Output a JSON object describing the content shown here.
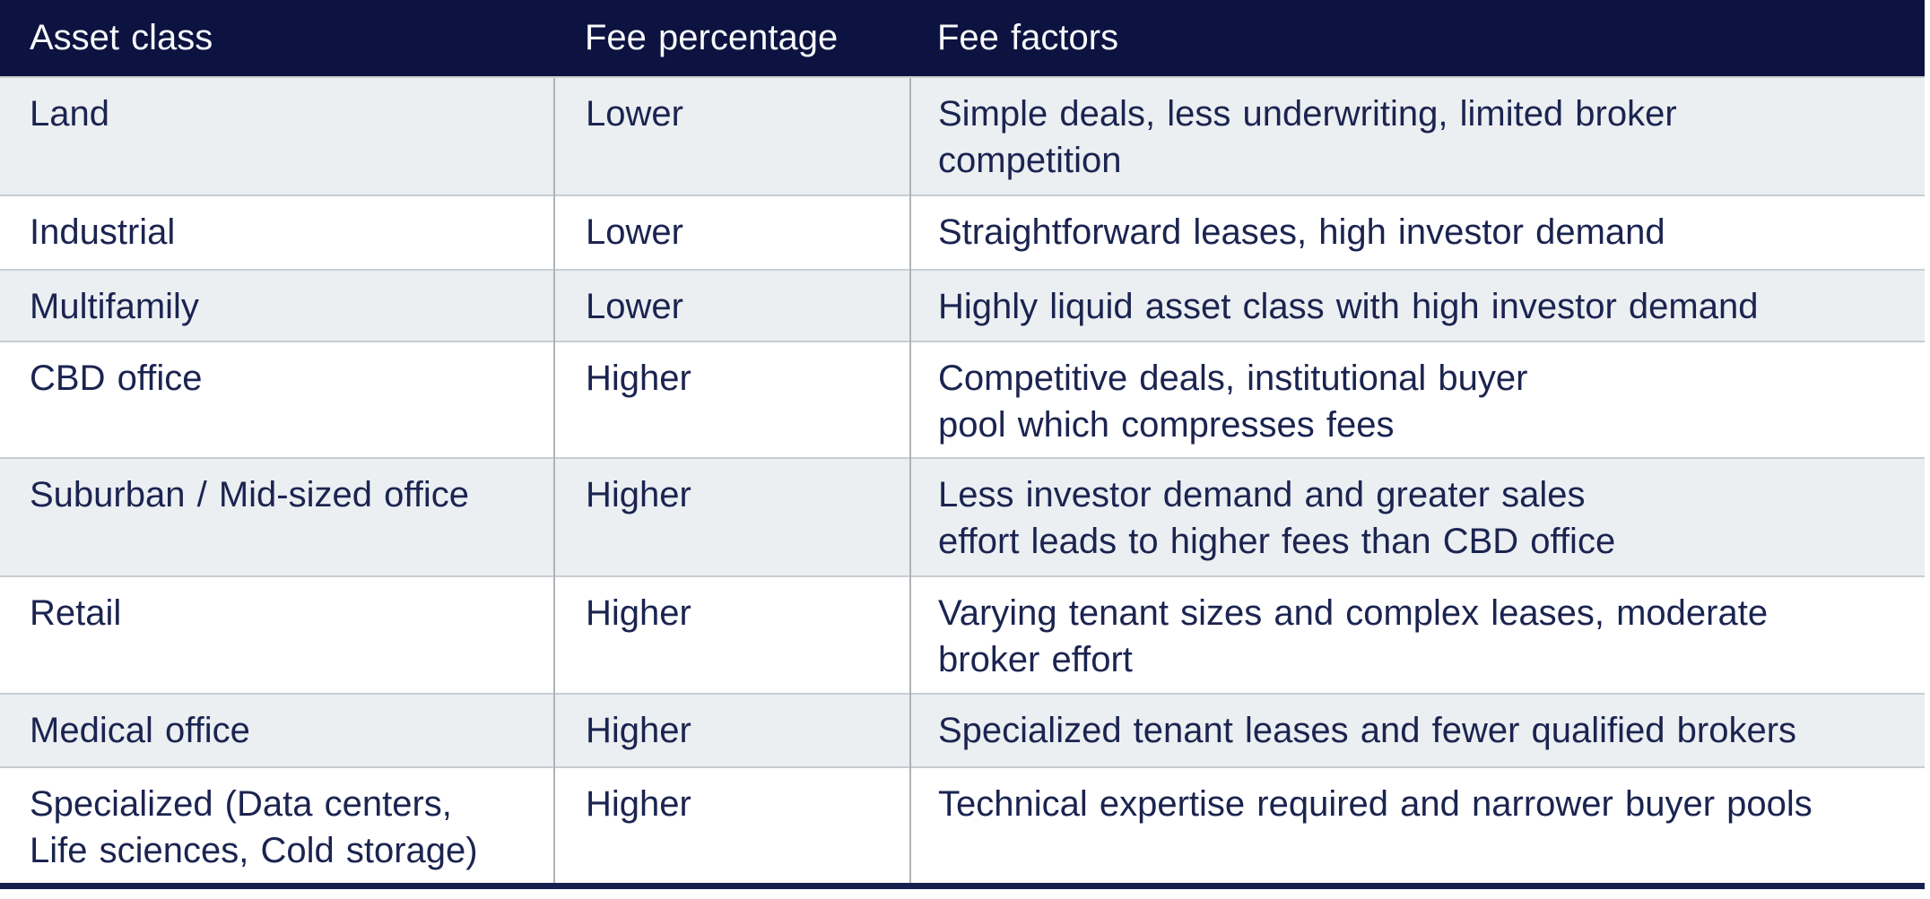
{
  "chart_data": {
    "type": "table",
    "columns": [
      "Asset class",
      "Fee percentage",
      "Fee factors"
    ],
    "rows": [
      {
        "asset": "Land",
        "fee": "Lower",
        "factors": "Simple deals, less underwriting, limited broker\ncompetition"
      },
      {
        "asset": "Industrial",
        "fee": "Lower",
        "factors": "Straightforward leases, high investor demand"
      },
      {
        "asset": "Multifamily",
        "fee": "Lower",
        "factors": "Highly liquid asset class with high investor demand"
      },
      {
        "asset": "CBD office",
        "fee": "Higher",
        "factors": "Competitive deals, institutional buyer\npool which compresses fees"
      },
      {
        "asset": "Suburban / Mid-sized office",
        "fee": "Higher",
        "factors": "Less investor demand and greater sales\neffort leads to higher fees than CBD office"
      },
      {
        "asset": "Retail",
        "fee": "Higher",
        "factors": "Varying tenant sizes and complex leases, moderate\nbroker effort"
      },
      {
        "asset": "Medical office",
        "fee": "Higher",
        "factors": "Specialized tenant leases and fewer qualified brokers"
      },
      {
        "asset": "Specialized (Data centers,\nLife sciences, Cold storage)",
        "fee": "Higher",
        "factors": "Technical expertise required and narrower buyer pools"
      }
    ],
    "legend": "none",
    "grid": "row separators and column dividers"
  },
  "colors": {
    "header_bg": "#0c1341",
    "header_text": "#f7f9fa",
    "body_text": "#1b2450",
    "zebra_row_bg": "#ebeff2",
    "plain_row_bg": "#ffffff",
    "row_divider": "#c9cdd1",
    "column_divider": "#aeb3b9",
    "bottom_rule": "#18214d"
  }
}
